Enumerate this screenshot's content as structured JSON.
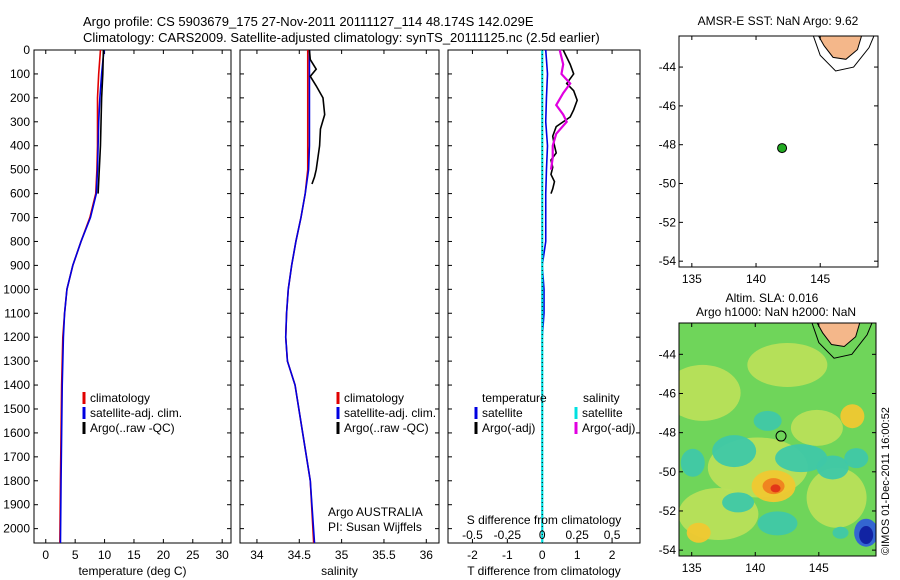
{
  "header": {
    "line1": "Argo profile: CS 5903679_175 27-Nov-2011 20111127_114 48.174S 142.029E",
    "line2": "Climatology: CARS2009. Satellite-adjusted climatology: synTS_20111125.nc (2.5d earlier)"
  },
  "chart_data": [
    {
      "type": "line",
      "id": "temperature",
      "xlabel": "temperature (deg C)",
      "xlim": [
        -2,
        31.5
      ],
      "ylim": [
        0,
        2060
      ],
      "xticks": [
        "0",
        "5",
        "10",
        "15",
        "20",
        "25",
        "30"
      ],
      "xtick_values": [
        0,
        5,
        10,
        15,
        20,
        25,
        30
      ],
      "yticks": [
        "0",
        "100",
        "200",
        "300",
        "400",
        "500",
        "600",
        "700",
        "800",
        "900",
        "1000",
        "1100",
        "1200",
        "1300",
        "1400",
        "1500",
        "1600",
        "1700",
        "1800",
        "1900",
        "2000"
      ],
      "ytick_values": [
        0,
        100,
        200,
        300,
        400,
        500,
        600,
        700,
        800,
        900,
        1000,
        1100,
        1200,
        1300,
        1400,
        1500,
        1600,
        1700,
        1800,
        1900,
        2000
      ],
      "series": [
        {
          "name": "climatology",
          "color": "#e00000",
          "x": [
            9.3,
            9.0,
            8.8,
            8.8,
            8.8,
            8.7,
            8.5,
            7.5,
            6.0,
            4.6,
            3.6,
            3.2,
            2.9,
            2.7,
            2.6,
            2.5,
            2.4
          ],
          "y": [
            0,
            100,
            200,
            300,
            400,
            500,
            600,
            700,
            800,
            900,
            1000,
            1100,
            1200,
            1400,
            1600,
            1800,
            2060
          ]
        },
        {
          "name": "satellite-adj. clim.",
          "color": "#0000e0",
          "x": [
            9.9,
            9.5,
            9.2,
            9.0,
            8.9,
            8.8,
            8.6,
            7.6,
            6.0,
            4.6,
            3.6,
            3.2,
            3.0,
            2.8,
            2.7,
            2.6,
            2.5
          ],
          "y": [
            0,
            100,
            200,
            300,
            400,
            500,
            600,
            700,
            800,
            900,
            1000,
            1100,
            1200,
            1400,
            1600,
            1800,
            2060
          ]
        },
        {
          "name": "Argo(..raw -QC)",
          "color": "#000000",
          "x": [
            9.8,
            9.7,
            9.5,
            9.4,
            9.3,
            9.1,
            8.9
          ],
          "y": [
            0,
            100,
            200,
            300,
            400,
            500,
            600
          ]
        }
      ],
      "legend": [
        "climatology",
        "satellite-adj. clim.",
        "Argo(..raw -QC)"
      ]
    },
    {
      "type": "line",
      "id": "salinity",
      "xlabel": "salinity",
      "xlim": [
        33.8,
        36.15
      ],
      "ylim": [
        0,
        2060
      ],
      "xticks": [
        "34",
        "34.5",
        "35",
        "35.5",
        "36"
      ],
      "xtick_values": [
        34,
        34.5,
        35,
        35.5,
        36
      ],
      "series": [
        {
          "name": "climatology",
          "color": "#e00000",
          "x": [
            34.6,
            34.6,
            34.6,
            34.6,
            34.6,
            34.6,
            34.57,
            34.52,
            34.46,
            34.41,
            34.37,
            34.35,
            34.34,
            34.36,
            34.45,
            34.54,
            34.63,
            34.67
          ],
          "y": [
            0,
            100,
            200,
            300,
            400,
            500,
            600,
            700,
            800,
            900,
            1000,
            1100,
            1200,
            1300,
            1400,
            1600,
            1800,
            2060
          ]
        },
        {
          "name": "satellite-adj. clim.",
          "color": "#0000e0",
          "x": [
            34.62,
            34.62,
            34.62,
            34.62,
            34.62,
            34.61,
            34.57,
            34.52,
            34.46,
            34.41,
            34.37,
            34.35,
            34.34,
            34.36,
            34.45,
            34.54,
            34.63,
            34.68
          ],
          "y": [
            0,
            100,
            200,
            300,
            400,
            500,
            600,
            700,
            800,
            900,
            1000,
            1100,
            1200,
            1300,
            1400,
            1600,
            1800,
            2060
          ]
        },
        {
          "name": "Argo(..raw -QC)",
          "color": "#000000",
          "x": [
            34.62,
            34.63,
            34.7,
            34.63,
            34.7,
            34.78,
            34.8,
            34.75,
            34.74,
            34.72,
            34.7,
            34.68,
            34.65
          ],
          "y": [
            0,
            40,
            80,
            110,
            150,
            200,
            270,
            330,
            400,
            450,
            500,
            530,
            560
          ]
        }
      ],
      "legend": [
        "climatology",
        "satellite-adj. clim.",
        "Argo(..raw -QC)"
      ],
      "annotation": [
        "Argo AUSTRALIA",
        "PI: Susan Wijffels"
      ]
    },
    {
      "type": "line",
      "id": "difference",
      "xlabel": "T difference from climatology",
      "xlabel_top": "S difference from climatology",
      "xlim": [
        -2.7,
        2.8
      ],
      "ylim": [
        0,
        2060
      ],
      "xticks": [
        "-2",
        "-1",
        "0",
        "1",
        "2"
      ],
      "xtick_values": [
        -2,
        -1,
        0,
        1,
        2
      ],
      "sticks": [
        "-0.5",
        "-0.25",
        "0",
        "0.25",
        "0.5"
      ],
      "stick_values": [
        -2,
        -1,
        0,
        1,
        2
      ],
      "series": [
        {
          "name": "temperature satellite",
          "color": "#0000e0",
          "x": [
            0.1,
            0.15,
            0.12,
            0.1,
            0.15,
            0.12,
            0.1,
            0.1,
            0.1,
            0.0,
            0.05,
            0.05,
            0.0,
            0.0,
            0.0,
            0.0,
            0.0
          ],
          "y": [
            0,
            100,
            200,
            300,
            400,
            500,
            600,
            700,
            800,
            900,
            1000,
            1100,
            1200,
            1300,
            1400,
            1600,
            2060
          ]
        },
        {
          "name": "temperature Argo(-adj)",
          "color": "#000000",
          "x": [
            0.6,
            0.8,
            0.9,
            0.7,
            0.9,
            1.0,
            0.9,
            0.8,
            0.4,
            0.3,
            0.35,
            0.4,
            0.25,
            0.3,
            0.25,
            0.35,
            0.3,
            0.25
          ],
          "y": [
            0,
            60,
            100,
            140,
            170,
            210,
            250,
            280,
            320,
            360,
            400,
            430,
            460,
            490,
            520,
            550,
            580,
            600
          ]
        },
        {
          "name": "salinity satellite",
          "color": "#00e0e0",
          "x": [
            0.0,
            0.0,
            0.0,
            0.0,
            0.0,
            0.0,
            0.0,
            0.0,
            0.0
          ],
          "y": [
            0,
            200,
            400,
            600,
            800,
            1000,
            1200,
            1600,
            2060
          ]
        },
        {
          "name": "salinity Argo(-adj)",
          "color": "#e000e0",
          "x": [
            0.5,
            0.6,
            0.55,
            0.8,
            0.6,
            0.4,
            0.6,
            0.7,
            0.4,
            0.3,
            0.3,
            0.25
          ],
          "y": [
            0,
            60,
            100,
            140,
            180,
            230,
            270,
            300,
            350,
            400,
            450,
            500
          ]
        }
      ],
      "legend_titles": [
        "temperature",
        "salinity"
      ],
      "legend": [
        "satellite",
        "Argo(-adj)",
        "satellite",
        "Argo(-adj)"
      ]
    }
  ],
  "maps": {
    "sst": {
      "title": "AMSR-E SST: NaN Argo: 9.62",
      "xticks": [
        "135",
        "140",
        "145"
      ],
      "xtick_values": [
        135,
        140,
        145
      ],
      "yticks": [
        "-44",
        "-46",
        "-48",
        "-50",
        "-52",
        "-54"
      ],
      "ytick_values": [
        -44,
        -46,
        -48,
        -50,
        -52,
        -54
      ],
      "xlim": [
        134,
        149.5
      ],
      "ylim": [
        -42.4,
        -54.3
      ],
      "float": {
        "lon": 142.029,
        "lat": -48.174,
        "color": "#22aa22"
      },
      "land_color": "#f4b78a"
    },
    "sla": {
      "title1": "Altim. SLA: 0.016",
      "title2": "Argo h1000: NaN h2000: NaN",
      "xticks": [
        "135",
        "140",
        "145"
      ],
      "xtick_values": [
        135,
        140,
        145
      ],
      "yticks": [
        "-44",
        "-46",
        "-48",
        "-50",
        "-52",
        "-54"
      ],
      "ytick_values": [
        -44,
        -46,
        -48,
        -50,
        -52,
        -54
      ],
      "xlim": [
        134,
        149.5
      ],
      "ylim": [
        -42.4,
        -54.3
      ],
      "float": {
        "lon": 142.029,
        "lat": -48.174
      },
      "land_color": "#f4b78a"
    }
  },
  "stamp": "©IMOS 01-Dec-2011 16:00:52"
}
